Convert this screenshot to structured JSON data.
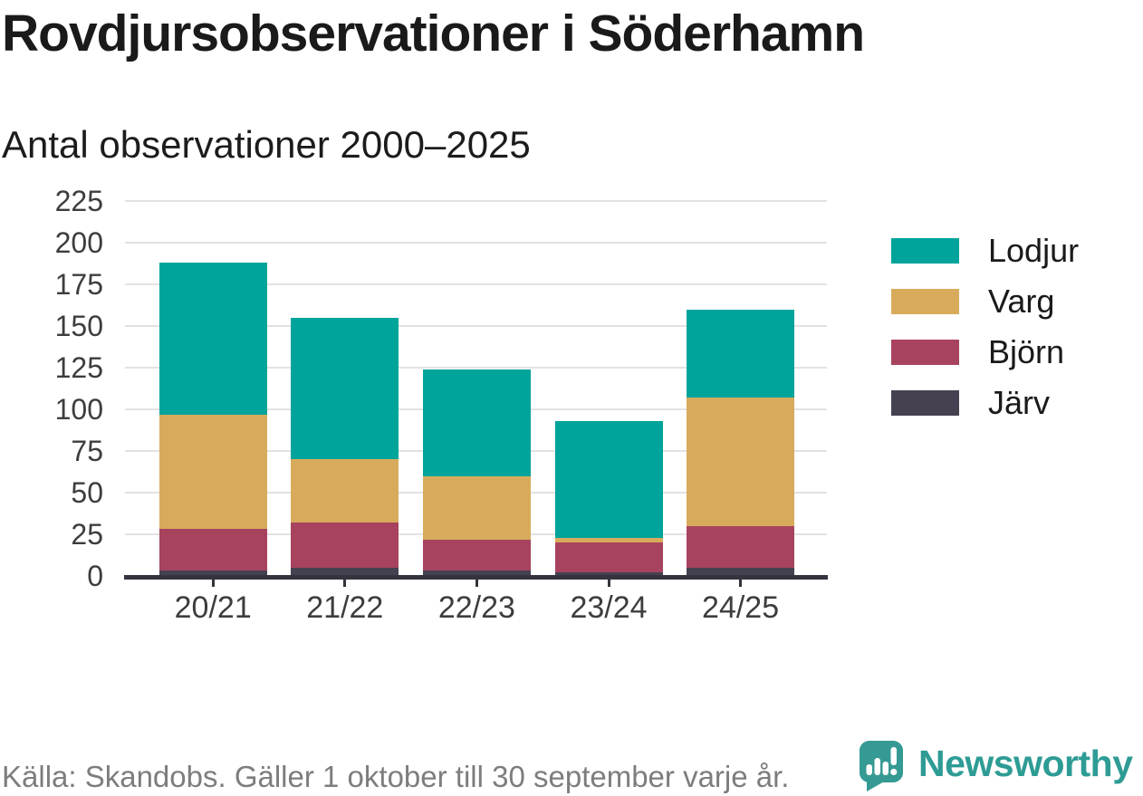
{
  "header": {
    "title": "Rovdjursobservationer i Söderhamn",
    "subtitle": "Antal observationer 2000–2025"
  },
  "chart_data": {
    "type": "bar",
    "stacked": true,
    "title": "Rovdjursobservationer i Söderhamn",
    "subtitle": "Antal observationer 2000–2025",
    "categories": [
      "20/21",
      "21/22",
      "22/23",
      "23/24",
      "24/25"
    ],
    "series": [
      {
        "name": "Järv",
        "color": "#454150",
        "values": [
          3,
          5,
          3,
          2,
          5
        ]
      },
      {
        "name": "Björn",
        "color": "#a8435f",
        "values": [
          25,
          27,
          19,
          18,
          25
        ]
      },
      {
        "name": "Varg",
        "color": "#d8ab5c",
        "values": [
          69,
          38,
          38,
          3,
          77
        ]
      },
      {
        "name": "Lodjur",
        "color": "#00a49a",
        "values": [
          91,
          85,
          64,
          70,
          53
        ]
      }
    ],
    "stack_order_bottom_to_top": [
      "Järv",
      "Björn",
      "Varg",
      "Lodjur"
    ],
    "legend": [
      "Lodjur",
      "Varg",
      "Björn",
      "Järv"
    ],
    "legend_position": "right",
    "ylim": [
      0,
      225
    ],
    "yticks": [
      0,
      25,
      50,
      75,
      100,
      125,
      150,
      175,
      200,
      225
    ],
    "grid": true,
    "xlabel": "",
    "ylabel": ""
  },
  "footer": {
    "source": "Källa: Skandobs. Gäller 1 oktober till 30 september varje år.",
    "brand": "Newsworthy"
  },
  "colors": {
    "lodjur": "#00a49a",
    "varg": "#d8ab5c",
    "bjorn": "#a8435f",
    "jarv": "#454150",
    "grid": "#e2e2e2",
    "axis": "#35333d",
    "tick_text": "#3d3d3d",
    "title_text": "#1a1a1a",
    "footer_text": "#7d7d7d",
    "brand_teal": "#2e9c95"
  }
}
